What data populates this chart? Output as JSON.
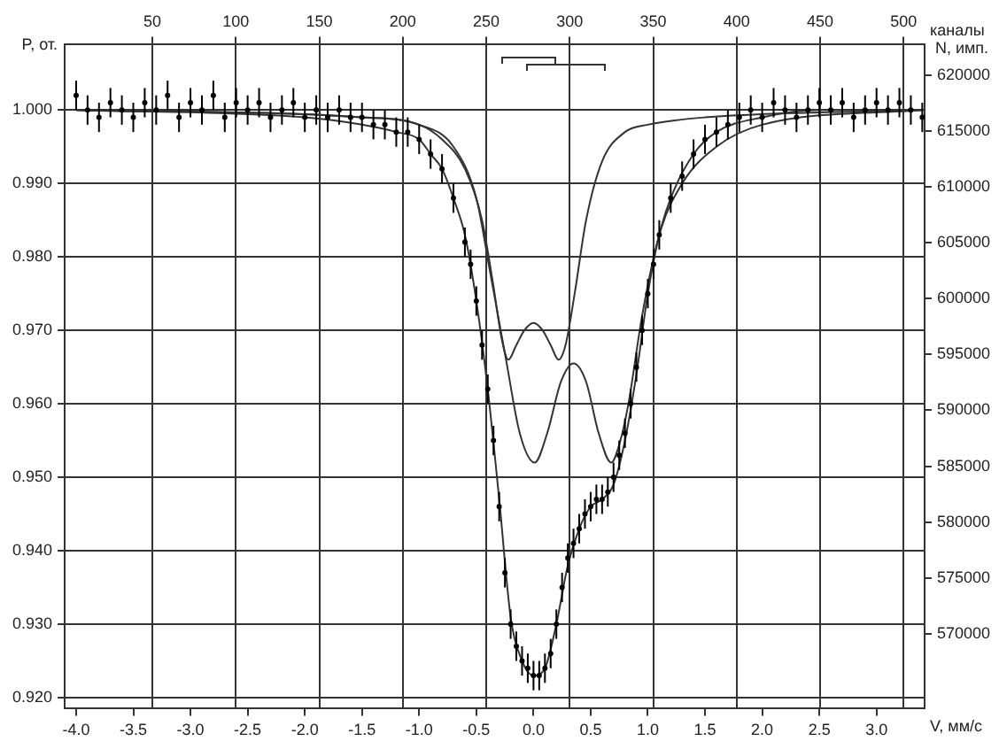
{
  "chart_data": {
    "type": "scatter",
    "xlabel": "V, мм/с",
    "ylabel": "P, от.",
    "y2label": "N, имп.",
    "x2label": "каналы",
    "xlim": [
      -4.1,
      3.42
    ],
    "ylim": [
      0.9185,
      1.009
    ],
    "y2lim": [
      563300,
      622800
    ],
    "x2lim": [
      -2.5,
      512.5
    ],
    "xticks": [
      {
        "value": -4,
        "label": "-4.0"
      },
      {
        "value": -3.5,
        "label": "-3.5"
      },
      {
        "value": -3,
        "label": "-3.0"
      },
      {
        "value": -2.5,
        "label": "-2.5"
      },
      {
        "value": -2,
        "label": "-2.0"
      },
      {
        "value": -1.5,
        "label": "-1.5"
      },
      {
        "value": -1,
        "label": "-1.0"
      },
      {
        "value": -0.5,
        "label": "-0.5"
      },
      {
        "value": 0,
        "label": "0.0"
      },
      {
        "value": 0.5,
        "label": "0.5"
      },
      {
        "value": 1,
        "label": "1.0"
      },
      {
        "value": 1.5,
        "label": "1.5"
      },
      {
        "value": 2,
        "label": "2.0"
      },
      {
        "value": 2.5,
        "label": "2.5"
      },
      {
        "value": 3,
        "label": "3.0"
      }
    ],
    "yticks": [
      {
        "value": 0.92,
        "label": "0.920"
      },
      {
        "value": 0.93,
        "label": "0.930"
      },
      {
        "value": 0.94,
        "label": "0.940"
      },
      {
        "value": 0.95,
        "label": "0.950"
      },
      {
        "value": 0.96,
        "label": "0.960"
      },
      {
        "value": 0.97,
        "label": "0.970"
      },
      {
        "value": 0.98,
        "label": "0.980"
      },
      {
        "value": 0.99,
        "label": "0.990"
      },
      {
        "value": 1,
        "label": "1.000"
      }
    ],
    "y2ticks": [
      570000,
      575000,
      580000,
      585000,
      590000,
      595000,
      600000,
      605000,
      610000,
      615000,
      620000
    ],
    "x2ticks": [
      50,
      100,
      150,
      200,
      250,
      300,
      350,
      400,
      450,
      500
    ],
    "grid": true,
    "legend": false,
    "line_style": "solid",
    "series": [
      {
        "type": "scatter",
        "marker": "circle",
        "color": "#000000",
        "x": [
          -4.0,
          -3.9,
          -3.8,
          -3.7,
          -3.6,
          -3.5,
          -3.4,
          -3.3,
          -3.2,
          -3.1,
          -3.0,
          -2.9,
          -2.8,
          -2.7,
          -2.6,
          -2.5,
          -2.4,
          -2.3,
          -2.2,
          -2.1,
          -2.0,
          -1.9,
          -1.8,
          -1.7,
          -1.6,
          -1.5,
          -1.4,
          -1.3,
          -1.2,
          -1.1,
          -1.0,
          -0.9,
          -0.8,
          -0.7,
          -0.6,
          -0.55,
          -0.5,
          -0.45,
          -0.4,
          -0.35,
          -0.3,
          -0.25,
          -0.2,
          -0.15,
          -0.1,
          -0.05,
          0.0,
          0.05,
          0.1,
          0.15,
          0.2,
          0.25,
          0.3,
          0.35,
          0.4,
          0.45,
          0.5,
          0.55,
          0.6,
          0.65,
          0.7,
          0.75,
          0.8,
          0.85,
          0.9,
          0.95,
          1.0,
          1.05,
          1.1,
          1.2,
          1.3,
          1.4,
          1.5,
          1.6,
          1.7,
          1.8,
          1.9,
          2.0,
          2.1,
          2.2,
          2.3,
          2.4,
          2.5,
          2.6,
          2.7,
          2.8,
          2.9,
          3.0,
          3.1,
          3.2,
          3.3,
          3.4
        ],
        "values": [
          1.002,
          1.0,
          0.999,
          1.001,
          1.0,
          0.999,
          1.001,
          1.0,
          1.002,
          0.999,
          1.001,
          1.0,
          1.002,
          0.999,
          1.001,
          1.0,
          1.001,
          0.999,
          1.0,
          1.001,
          0.999,
          1.0,
          0.999,
          1.0,
          0.999,
          0.999,
          0.998,
          0.998,
          0.997,
          0.997,
          0.996,
          0.994,
          0.992,
          0.988,
          0.982,
          0.979,
          0.974,
          0.968,
          0.962,
          0.955,
          0.946,
          0.937,
          0.93,
          0.927,
          0.925,
          0.924,
          0.923,
          0.923,
          0.924,
          0.926,
          0.93,
          0.935,
          0.939,
          0.941,
          0.943,
          0.945,
          0.946,
          0.947,
          0.947,
          0.948,
          0.95,
          0.953,
          0.956,
          0.96,
          0.965,
          0.97,
          0.975,
          0.979,
          0.983,
          0.988,
          0.991,
          0.994,
          0.996,
          0.997,
          0.998,
          0.999,
          1.0,
          0.999,
          1.001,
          1.0,
          0.999,
          1.0,
          1.001,
          1.0,
          1.001,
          0.999,
          1.0,
          1.001,
          1.0,
          1.001,
          1.0,
          0.999
        ],
        "errors": [
          0.002,
          0.002,
          0.002,
          0.002,
          0.002,
          0.002,
          0.002,
          0.002,
          0.002,
          0.002,
          0.002,
          0.002,
          0.002,
          0.002,
          0.002,
          0.002,
          0.002,
          0.002,
          0.002,
          0.002,
          0.002,
          0.002,
          0.002,
          0.002,
          0.002,
          0.002,
          0.002,
          0.002,
          0.002,
          0.002,
          0.002,
          0.002,
          0.002,
          0.002,
          0.002,
          0.002,
          0.002,
          0.002,
          0.002,
          0.002,
          0.002,
          0.002,
          0.002,
          0.002,
          0.002,
          0.002,
          0.002,
          0.002,
          0.002,
          0.002,
          0.002,
          0.002,
          0.002,
          0.002,
          0.002,
          0.002,
          0.002,
          0.002,
          0.002,
          0.002,
          0.002,
          0.002,
          0.002,
          0.002,
          0.002,
          0.002,
          0.002,
          0.002,
          0.002,
          0.002,
          0.002,
          0.002,
          0.002,
          0.002,
          0.002,
          0.002,
          0.002,
          0.002,
          0.002,
          0.002,
          0.002,
          0.002,
          0.002,
          0.002,
          0.002,
          0.002,
          0.002,
          0.002,
          0.002,
          0.002,
          0.002,
          0.002
        ]
      },
      {
        "type": "line",
        "color": "#333333",
        "x": [
          -4.0,
          -2.0,
          -1.5,
          -1.2,
          -1.0,
          -0.9,
          -0.8,
          -0.7,
          -0.6,
          -0.5,
          -0.4,
          -0.3,
          -0.2,
          -0.1,
          0,
          0.1,
          0.2,
          0.3,
          0.4,
          0.5,
          0.6,
          0.7,
          0.8,
          0.9,
          1.0,
          1.1,
          1.2,
          1.4,
          1.6,
          2.0,
          2.5,
          3.4
        ],
        "values": [
          1.0,
          0.999,
          0.998,
          0.997,
          0.996,
          0.994,
          0.992,
          0.988,
          0.983,
          0.974,
          0.962,
          0.947,
          0.931,
          0.925,
          0.923,
          0.924,
          0.93,
          0.938,
          0.943,
          0.946,
          0.947,
          0.949,
          0.955,
          0.964,
          0.975,
          0.983,
          0.988,
          0.994,
          0.997,
          0.999,
          1.0,
          1.0
        ]
      },
      {
        "type": "line",
        "color": "#333333",
        "x": [
          -4.0,
          -1.5,
          -1.0,
          -0.8,
          -0.6,
          -0.45,
          -0.35,
          -0.28,
          -0.22,
          -0.15,
          -0.08,
          0.0,
          0.08,
          0.15,
          0.22,
          0.28,
          0.36,
          0.46,
          0.6,
          0.8,
          1.0,
          1.5,
          3.4
        ],
        "values": [
          1.0,
          0.999,
          0.998,
          0.996,
          0.992,
          0.985,
          0.976,
          0.969,
          0.966,
          0.968,
          0.97,
          0.971,
          0.97,
          0.968,
          0.966,
          0.968,
          0.975,
          0.985,
          0.993,
          0.997,
          0.998,
          0.999,
          1.0
        ]
      },
      {
        "type": "line",
        "color": "#333333",
        "x": [
          -4.0,
          -1.5,
          -1.0,
          -0.7,
          -0.5,
          -0.38,
          -0.24,
          -0.12,
          0.01,
          0.12,
          0.24,
          0.35,
          0.46,
          0.57,
          0.68,
          0.76,
          0.83,
          0.95,
          1.1,
          1.3,
          1.6,
          2.0,
          3.4
        ],
        "values": [
          1.0,
          0.999,
          0.998,
          0.995,
          0.988,
          0.978,
          0.966,
          0.956,
          0.952,
          0.956,
          0.963,
          0.9655,
          0.963,
          0.956,
          0.952,
          0.955,
          0.96,
          0.972,
          0.983,
          0.99,
          0.995,
          0.998,
          1.0
        ]
      }
    ]
  }
}
